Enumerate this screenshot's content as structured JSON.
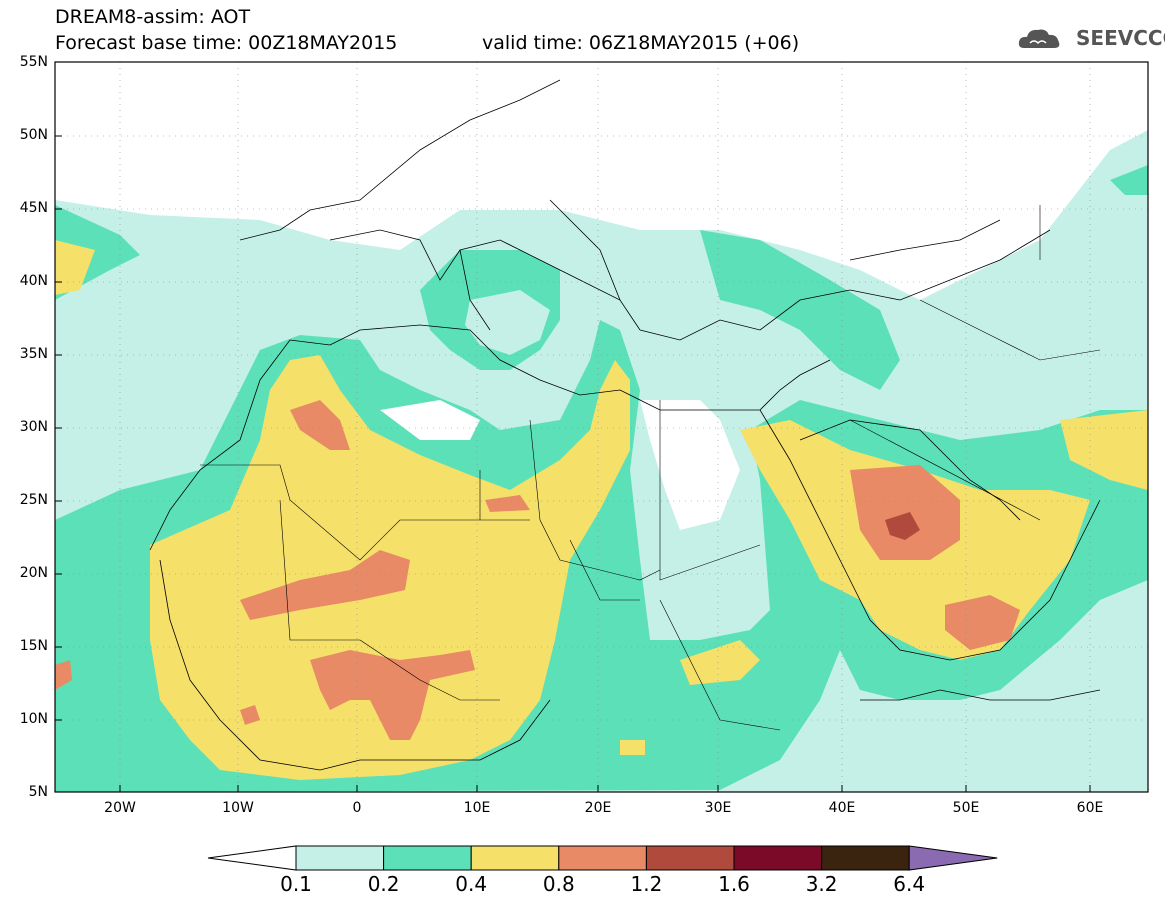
{
  "title": {
    "line1": "DREAM8-assim: AOT",
    "line2": "Forecast base time: 00Z18MAY2015",
    "line3": "valid time: 06Z18MAY2015 (+06)"
  },
  "logo": {
    "text": "SEEVCCC",
    "icon": "cloud-icon"
  },
  "axes": {
    "lat_labels": [
      "55N",
      "50N",
      "45N",
      "40N",
      "35N",
      "30N",
      "25N",
      "20N",
      "15N",
      "10N",
      "5N"
    ],
    "lon_labels": [
      "20W",
      "10W",
      "0",
      "10E",
      "20E",
      "30E",
      "40E",
      "50E",
      "60E"
    ],
    "lat_range": [
      5,
      55
    ],
    "lon_range": [
      -25,
      65
    ]
  },
  "colorbar": {
    "levels": [
      "0.1",
      "0.2",
      "0.4",
      "0.8",
      "1.2",
      "1.6",
      "3.2",
      "6.4"
    ],
    "colors": [
      "#c4f0e8",
      "#5ce0b8",
      "#f5e06a",
      "#e88a66",
      "#b04a3c",
      "#7a0a28",
      "#3a2410",
      "#8a6ab0"
    ],
    "under_color": "#ffffff"
  },
  "chart_data": {
    "type": "heatmap",
    "variable": "AOT",
    "xlim": [
      -25,
      65
    ],
    "ylim": [
      5,
      55
    ]
  }
}
